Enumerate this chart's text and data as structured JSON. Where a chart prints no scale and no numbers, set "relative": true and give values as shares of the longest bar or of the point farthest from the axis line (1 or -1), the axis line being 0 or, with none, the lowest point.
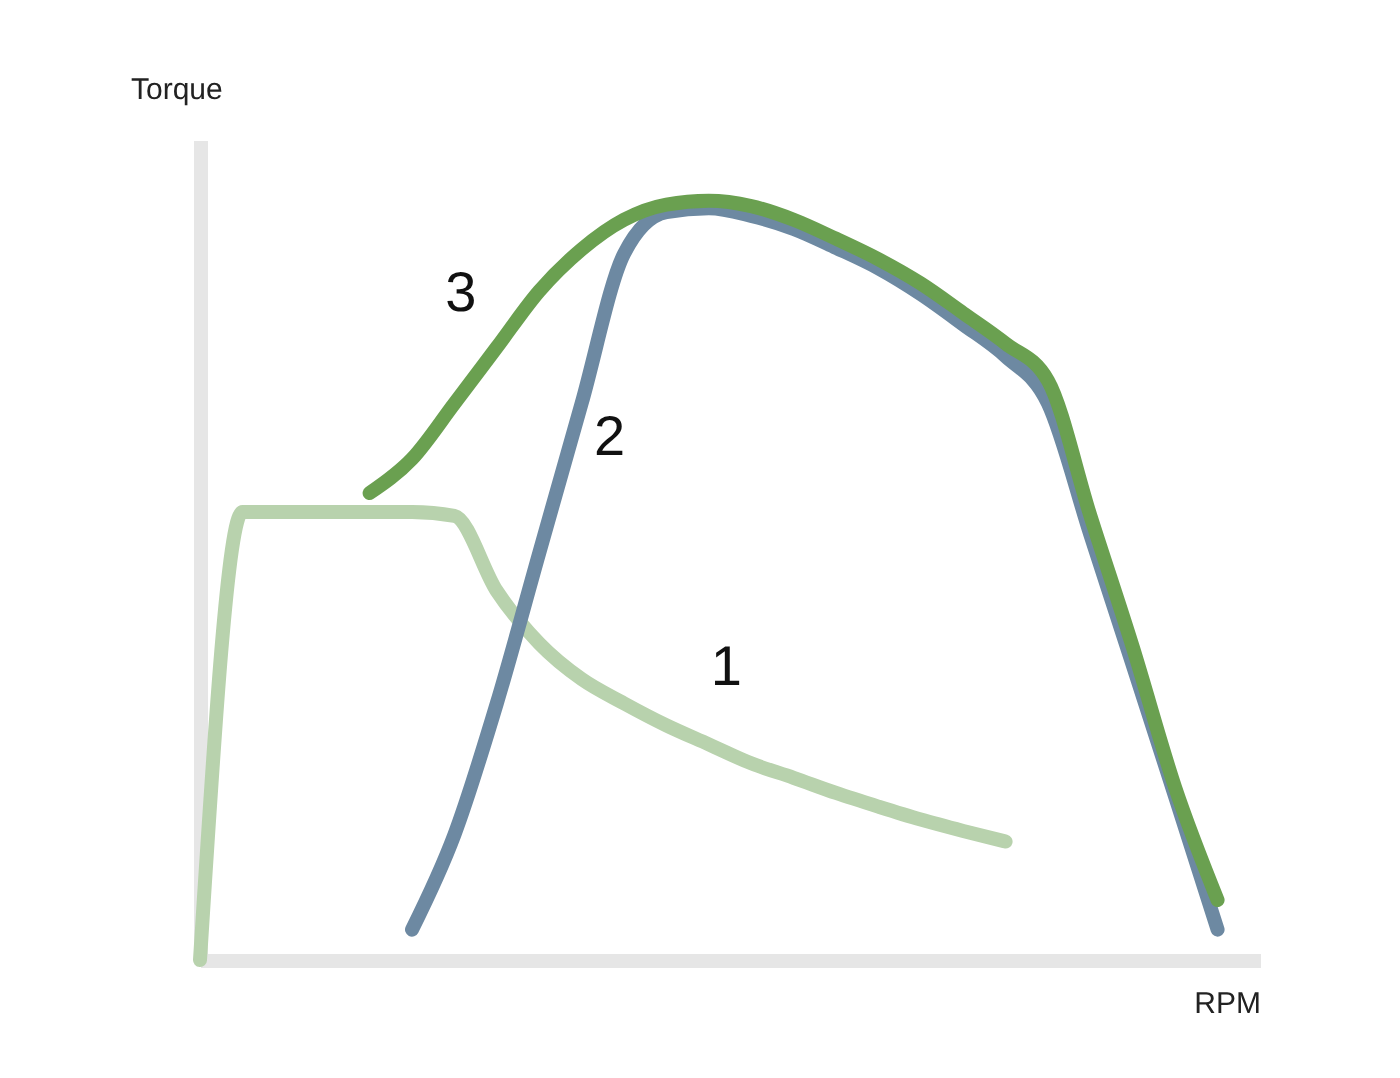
{
  "chart_data": {
    "type": "line",
    "relative": true,
    "xlabel": "RPM",
    "ylabel": "Torque",
    "marker": "none",
    "line_style": "solid",
    "categories": [
      null,
      null,
      null,
      null,
      null,
      null,
      null,
      null,
      null,
      null,
      null,
      null,
      null,
      null,
      null,
      null,
      null,
      null,
      null,
      null,
      null,
      null,
      null,
      null,
      null,
      null
    ],
    "series": [
      {
        "name": "1",
        "color": "#b8d2ad",
        "values": [
          0,
          0.59,
          0.59,
          0.59,
          0.59,
          0.59,
          0.585,
          0.486,
          0.417,
          0.37,
          0.338,
          0.309,
          0.284,
          0.259,
          0.24,
          0.22,
          0.202,
          0.185,
          0.17,
          0.156,
          null,
          null,
          null,
          null,
          null,
          null
        ]
      },
      {
        "name": "2",
        "color": "#6d89a2",
        "values": [
          null,
          null,
          null,
          null,
          null,
          0.04,
          0.165,
          0.338,
          0.536,
          0.733,
          0.93,
          0.985,
          0.99,
          0.98,
          0.963,
          0.938,
          0.911,
          0.877,
          0.837,
          0.795,
          0.733,
          0.56,
          0.388,
          0.215,
          0.04,
          null
        ]
      },
      {
        "name": "3",
        "color": "#6aa050",
        "values": [
          null,
          null,
          null,
          null,
          0.615,
          0.66,
          0.733,
          0.807,
          0.881,
          0.936,
          0.975,
          0.995,
          1,
          0.993,
          0.975,
          0.95,
          0.923,
          0.891,
          0.852,
          0.812,
          0.763,
          0.585,
          0.412,
          0.227,
          0.079,
          null
        ]
      }
    ]
  }
}
